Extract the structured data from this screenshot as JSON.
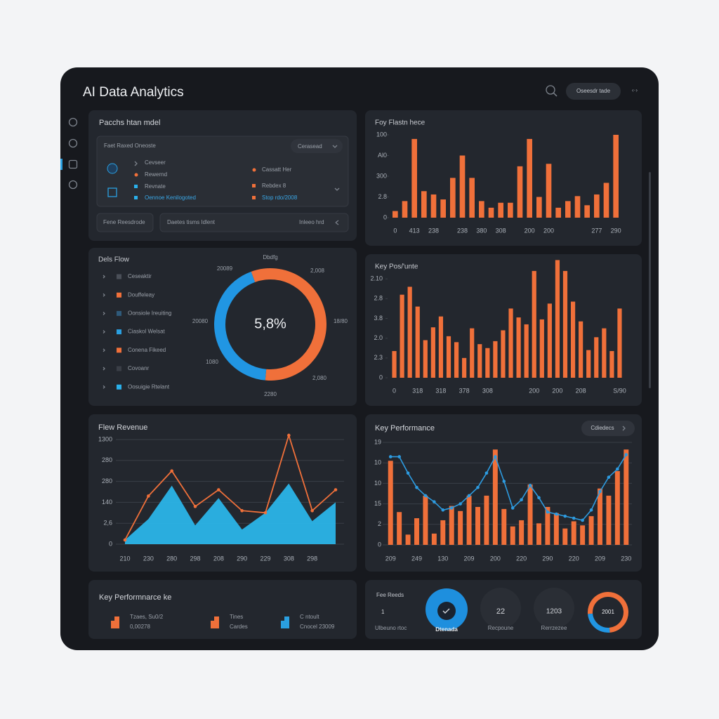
{
  "header": {
    "title": "AI Data Analytics",
    "button": "Oseesdr tade",
    "nav": "‹·›"
  },
  "model_panel": {
    "title": "Pacchs htan mdel",
    "box_title": "Faet Raxed Oneoste",
    "dropdown": "Cerasead",
    "left_items": [
      "Cevseer",
      "Rewernd",
      "Revnate",
      "Oennoe Kenilogoted"
    ],
    "right_items": [
      "Cassatt Her",
      "Rebdex 8",
      "Stop rdo/2008"
    ],
    "button": "Fene Reesdrode",
    "field": "Daetes tisms Idlent",
    "field_action": "Inleeo hrd"
  },
  "kpi_left": {
    "title": "Key Performnarce ke",
    "items": [
      {
        "lines": [
          "Tzaes, Su0/2",
          "0,00278"
        ],
        "color": "#f0703a"
      },
      {
        "lines": [
          "Tines",
          "Cardes"
        ],
        "color": "#f0703a"
      },
      {
        "lines": [
          "C ntoult",
          "Cnocel 23009"
        ],
        "color": "#2a9fe0"
      }
    ]
  },
  "kpi_right": {
    "title": "Fee Reeds",
    "value": 1,
    "caption": "Ulbeuno rtoc",
    "rings": [
      {
        "label": "Dtenada"
      },
      {
        "value": 22,
        "label": "Recpoune"
      },
      {
        "value": 1203,
        "label": "Rerrzezee"
      }
    ]
  },
  "chart_data": [
    {
      "type": "bar",
      "title": "Foy Flastn hece",
      "color": "#f0703a",
      "categories": [
        "0",
        null,
        "413",
        null,
        "238",
        null,
        null,
        "238",
        null,
        "380",
        null,
        "308",
        null,
        null,
        "200",
        null,
        "200",
        null,
        null,
        null,
        null,
        "277",
        null,
        "290"
      ],
      "values": [
        8,
        20,
        95,
        32,
        28,
        22,
        48,
        75,
        48,
        20,
        12,
        18,
        18,
        62,
        95,
        25,
        65,
        12,
        20,
        26,
        15,
        28,
        42,
        100
      ],
      "ylim": [
        0,
        100
      ],
      "yticks": [
        0,
        {
          "value": 25,
          "label": "2.8"
        },
        {
          "value": 50,
          "label": "300"
        },
        {
          "value": 75,
          "label": "Al0"
        },
        100
      ],
      "grid": false
    },
    {
      "type": "pie",
      "title": "Dels Flow",
      "values": [
        57,
        43
      ],
      "colors": [
        "#f0703a",
        "#2196e3"
      ],
      "center_label": "5,8%",
      "annotations": [
        "Dbdfg",
        "20089",
        "2,008",
        "20080",
        "18/80",
        "1080",
        "2,080",
        "2280"
      ],
      "legend": [
        {
          "label": "Ceseaktir",
          "color": "#4a4f58"
        },
        {
          "label": "Douffeleay",
          "color": "#f0703a"
        },
        {
          "label": "Oonsiole Ireuiting",
          "color": "#2f5a7a"
        },
        {
          "label": "Ciaskol Welsat",
          "color": "#2a9fe0"
        },
        {
          "label": "Conena Fikeed",
          "color": "#f0703a"
        },
        {
          "label": "Covoanr",
          "color": "#3a3e46"
        },
        {
          "label": "Oosuigie Rtelant",
          "color": "#2ab0ea"
        }
      ]
    },
    {
      "type": "bar",
      "title": "Key Pos/'unte",
      "color": "#f0703a",
      "categories": [
        "0",
        null,
        null,
        "318",
        null,
        null,
        "318",
        null,
        null,
        "378",
        null,
        null,
        "308",
        null,
        null,
        null,
        null,
        null,
        "200",
        null,
        null,
        "200",
        null,
        null,
        "208",
        null,
        null,
        null,
        null,
        "S/90"
      ],
      "values": [
        1.35,
        4.2,
        4.6,
        3.6,
        1.9,
        2.55,
        3.1,
        2.1,
        1.8,
        1.0,
        2.5,
        1.7,
        1.5,
        1.85,
        2.4,
        3.5,
        3.05,
        2.7,
        5.4,
        2.95,
        3.75,
        5.95,
        5.4,
        3.85,
        2.85,
        1.4,
        2.05,
        2.5,
        1.35,
        3.5
      ],
      "ylim": [
        0,
        6
      ],
      "yticks": [
        0,
        {
          "value": 1,
          "label": "2.3"
        },
        {
          "value": 2,
          "label": "2.0"
        },
        {
          "value": 3,
          "label": "3.8"
        },
        {
          "value": 4,
          "label": "2.8"
        },
        {
          "value": 5,
          "label": "2.10"
        }
      ],
      "grid": false
    },
    {
      "type": "line",
      "title": "Flew Revenue",
      "categories": [
        "210",
        "230",
        "280",
        "298",
        "208",
        "290",
        "229",
        "308",
        "298",
        null
      ],
      "series": [
        {
          "type": "area",
          "color": "#2bb4e8",
          "values": [
            0.2,
            1.2,
            2.8,
            0.9,
            2.2,
            0.7,
            1.5,
            2.9,
            1.1,
            2.0
          ]
        },
        {
          "type": "line",
          "color": "#f0703a",
          "values": [
            0.2,
            2.3,
            3.5,
            1.8,
            2.6,
            1.6,
            1.5,
            5.2,
            1.6,
            2.6
          ]
        }
      ],
      "ylim": [
        0,
        5
      ],
      "yticks": [
        0,
        {
          "value": 1,
          "label": "2,6"
        },
        {
          "value": 2,
          "label": "140"
        },
        {
          "value": 3,
          "label": "280"
        },
        {
          "value": 4,
          "label": "280"
        },
        {
          "value": 5,
          "label": "1300"
        }
      ],
      "grid": true
    },
    {
      "type": "combo",
      "title": "Key Performance",
      "button": "Cdiedecs",
      "categories": [
        "209",
        null,
        null,
        "249",
        null,
        null,
        "130",
        null,
        null,
        "209",
        null,
        null,
        "200",
        null,
        null,
        "220",
        null,
        null,
        "290",
        null,
        null,
        "220",
        null,
        null,
        "209",
        null,
        null,
        "230"
      ],
      "series": [
        {
          "type": "bar",
          "color": "#f0703a",
          "values": [
            4.1,
            1.6,
            0.5,
            1.3,
            2.4,
            0.55,
            1.2,
            1.9,
            1.65,
            2.4,
            1.85,
            2.4,
            4.65,
            1.75,
            0.9,
            1.2,
            2.95,
            1.05,
            1.85,
            1.55,
            0.8,
            1.15,
            0.95,
            1.4,
            2.75,
            2.4,
            3.6,
            4.65
          ]
        },
        {
          "type": "line",
          "color": "#2d9be0",
          "values": [
            4.3,
            4.3,
            3.5,
            2.8,
            2.4,
            2.1,
            1.7,
            1.8,
            2.0,
            2.4,
            2.8,
            3.5,
            4.3,
            3.1,
            1.8,
            2.2,
            2.9,
            2.3,
            1.6,
            1.5,
            1.4,
            1.3,
            1.2,
            1.7,
            2.6,
            3.3,
            3.7,
            4.4
          ]
        }
      ],
      "ylim": [
        0,
        5
      ],
      "yticks": [
        0,
        {
          "value": 1,
          "label": "2"
        },
        {
          "value": 2,
          "label": "15"
        },
        {
          "value": 3,
          "label": "10"
        },
        {
          "value": 4,
          "label": "10"
        },
        {
          "value": 5,
          "label": "19"
        }
      ],
      "grid": true
    },
    {
      "type": "pie",
      "values": [
        75,
        25
      ],
      "colors": [
        "#f0703a",
        "#2196e3"
      ],
      "center_label": "2001"
    }
  ]
}
